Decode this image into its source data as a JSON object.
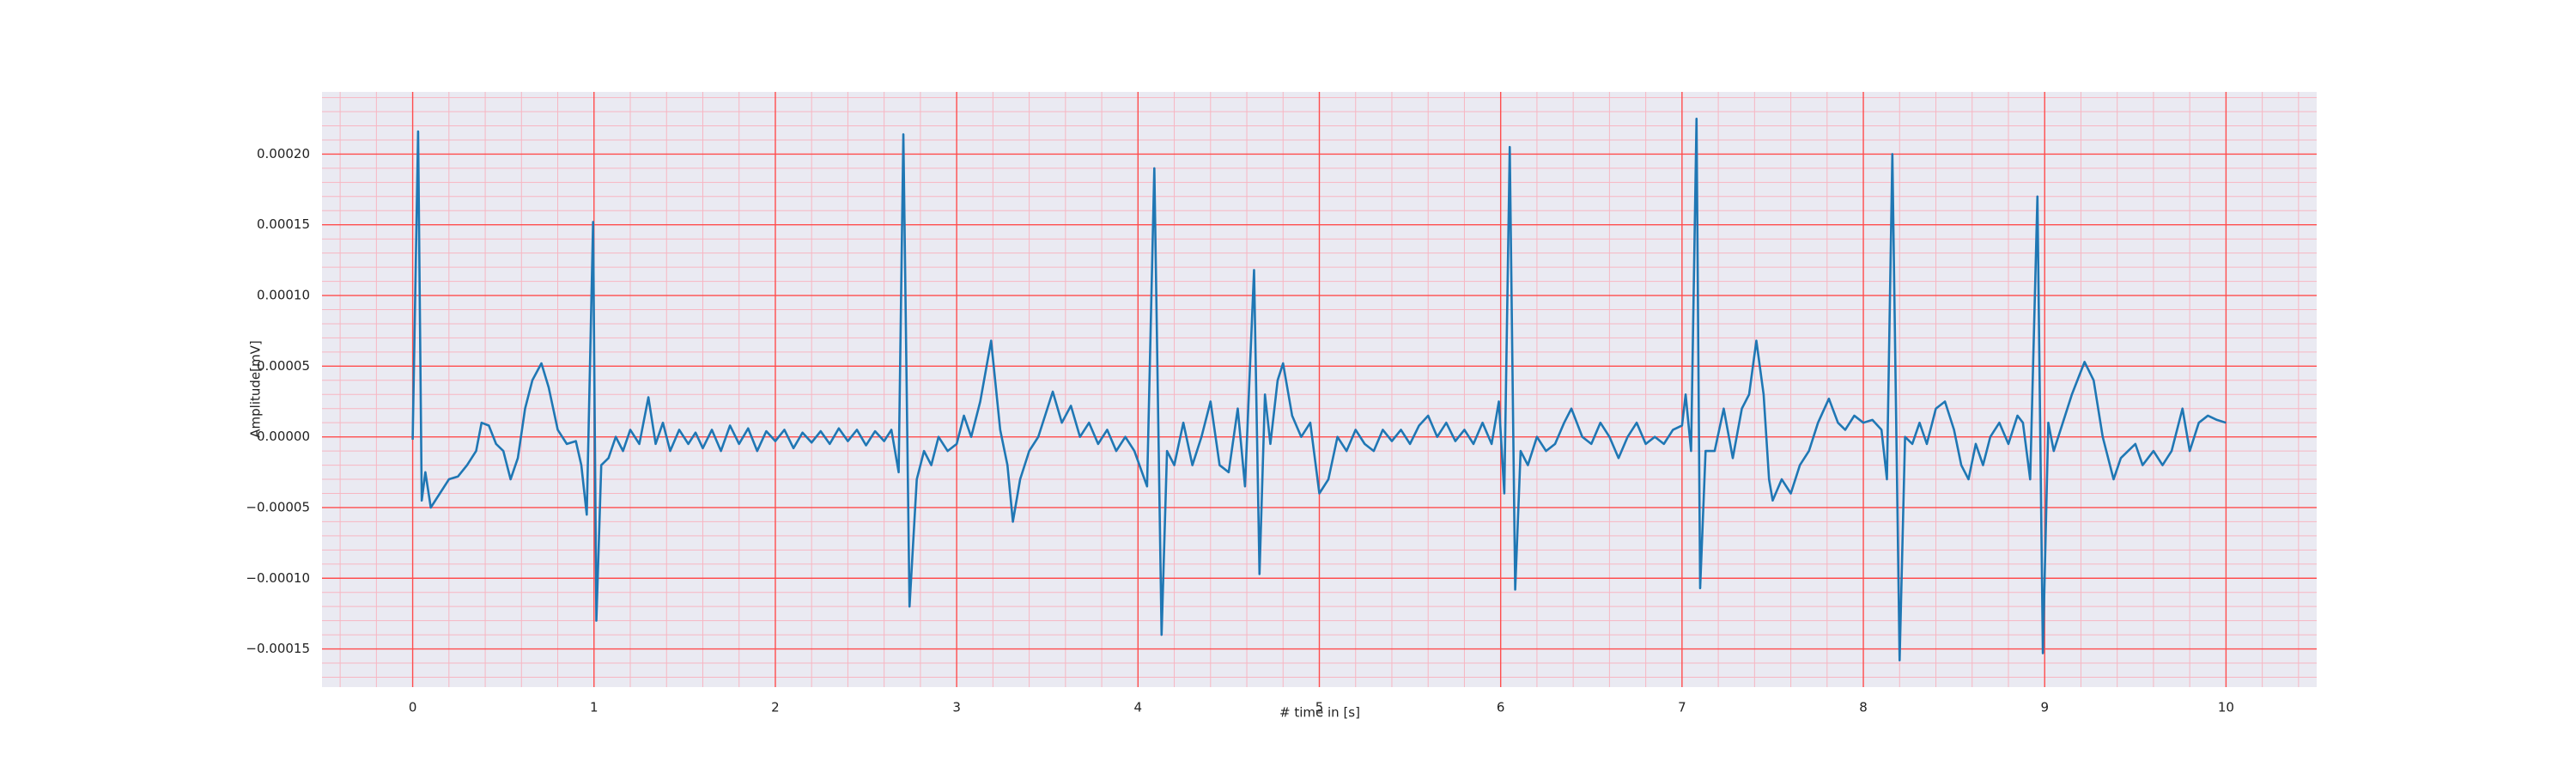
{
  "chart_data": {
    "type": "line",
    "xlabel": "# time in [s]",
    "ylabel": "Amplitude[mV]",
    "color": "#1f77b4",
    "background": "#eaeaf2",
    "grid": true,
    "grid_color": "#ff4d4d",
    "minor_grid": true,
    "minor_grid_color": "#f7b6c2",
    "xlim": [
      -0.5,
      10.5
    ],
    "ylim": [
      -0.000177,
      0.000244
    ],
    "xticks": [
      0,
      1,
      2,
      3,
      4,
      5,
      6,
      7,
      8,
      9,
      10
    ],
    "yticks": [
      {
        "value": -0.00015,
        "label": "−0.00015"
      },
      {
        "value": -0.0001,
        "label": "−0.00010"
      },
      {
        "value": -5e-05,
        "label": "−0.00005"
      },
      {
        "value": 0,
        "label": "0.00000"
      },
      {
        "value": 5e-05,
        "label": "0.00005"
      },
      {
        "value": 0.0001,
        "label": "0.00010"
      },
      {
        "value": 0.00015,
        "label": "0.00015"
      },
      {
        "value": 0.0002,
        "label": "0.00020"
      }
    ],
    "x": [
      0,
      0.03,
      0.05,
      0.07,
      0.1,
      0.15,
      0.2,
      0.25,
      0.3,
      0.35,
      0.38,
      0.42,
      0.46,
      0.5,
      0.54,
      0.58,
      0.62,
      0.66,
      0.71,
      0.75,
      0.8,
      0.85,
      0.9,
      0.93,
      0.96,
      0.995,
      1.013,
      1.04,
      1.08,
      1.12,
      1.16,
      1.2,
      1.25,
      1.3,
      1.34,
      1.38,
      1.42,
      1.47,
      1.52,
      1.56,
      1.6,
      1.65,
      1.7,
      1.75,
      1.8,
      1.85,
      1.9,
      1.95,
      2.0,
      2.05,
      2.1,
      2.15,
      2.2,
      2.25,
      2.3,
      2.35,
      2.4,
      2.45,
      2.5,
      2.55,
      2.6,
      2.64,
      2.68,
      2.706,
      2.74,
      2.78,
      2.82,
      2.86,
      2.9,
      2.95,
      3.0,
      3.04,
      3.08,
      3.13,
      3.19,
      3.24,
      3.28,
      3.31,
      3.35,
      3.4,
      3.45,
      3.5,
      3.53,
      3.58,
      3.63,
      3.68,
      3.73,
      3.78,
      3.83,
      3.88,
      3.93,
      3.98,
      4.05,
      4.09,
      4.13,
      4.16,
      4.2,
      4.25,
      4.3,
      4.35,
      4.4,
      4.45,
      4.5,
      4.55,
      4.59,
      4.64,
      4.67,
      4.7,
      4.73,
      4.77,
      4.8,
      4.85,
      4.9,
      4.95,
      5.0,
      5.05,
      5.1,
      5.15,
      5.2,
      5.25,
      5.3,
      5.35,
      5.4,
      5.45,
      5.5,
      5.55,
      5.6,
      5.65,
      5.7,
      5.75,
      5.8,
      5.85,
      5.9,
      5.95,
      5.99,
      6.02,
      6.05,
      6.08,
      6.11,
      6.15,
      6.2,
      6.25,
      6.3,
      6.35,
      6.39,
      6.45,
      6.5,
      6.55,
      6.6,
      6.65,
      6.7,
      6.75,
      6.8,
      6.85,
      6.9,
      6.95,
      7.0,
      7.02,
      7.05,
      7.08,
      7.1,
      7.13,
      7.18,
      7.23,
      7.28,
      7.33,
      7.37,
      7.41,
      7.45,
      7.48,
      7.5,
      7.55,
      7.6,
      7.65,
      7.7,
      7.75,
      7.81,
      7.86,
      7.9,
      7.95,
      8.0,
      8.05,
      8.1,
      8.13,
      8.16,
      8.2,
      8.23,
      8.27,
      8.31,
      8.35,
      8.4,
      8.45,
      8.5,
      8.54,
      8.58,
      8.62,
      8.66,
      8.7,
      8.75,
      8.8,
      8.85,
      8.88,
      8.92,
      8.96,
      8.99,
      9.02,
      9.05,
      9.1,
      9.15,
      9.22,
      9.27,
      9.32,
      9.38,
      9.42,
      9.46,
      9.5,
      9.54,
      9.6,
      9.65,
      9.7,
      9.76,
      9.8,
      9.85,
      9.9,
      9.95,
      10.0
    ],
    "values": [
      -2e-06,
      0.000216,
      -4.5e-05,
      -2.5e-05,
      -5e-05,
      -4e-05,
      -3e-05,
      -2.8e-05,
      -2e-05,
      -1e-05,
      1e-05,
      8e-06,
      -5e-06,
      -1e-05,
      -3e-05,
      -1.5e-05,
      2e-05,
      4e-05,
      5.2e-05,
      3.5e-05,
      5e-06,
      -5e-06,
      -3e-06,
      -2e-05,
      -5.5e-05,
      0.000152,
      -0.00013,
      -2e-05,
      -1.5e-05,
      0,
      -1e-05,
      5e-06,
      -5e-06,
      2.8e-05,
      -5e-06,
      1e-05,
      -1e-05,
      5e-06,
      -5e-06,
      3e-06,
      -8e-06,
      5e-06,
      -1e-05,
      8e-06,
      -5e-06,
      6e-06,
      -1e-05,
      4e-06,
      -3e-06,
      5e-06,
      -8e-06,
      3e-06,
      -4e-06,
      4e-06,
      -5e-06,
      6e-06,
      -3e-06,
      5e-06,
      -6e-06,
      4e-06,
      -3e-06,
      5e-06,
      -2.5e-05,
      0.000214,
      -0.00012,
      -3e-05,
      -1e-05,
      -2e-05,
      0,
      -1e-05,
      -5e-06,
      1.5e-05,
      0,
      2.5e-05,
      6.8e-05,
      5e-06,
      -2e-05,
      -6e-05,
      -3e-05,
      -1e-05,
      0,
      2e-05,
      3.2e-05,
      1e-05,
      2.2e-05,
      0,
      1e-05,
      -5e-06,
      5e-06,
      -1e-05,
      0,
      -1e-05,
      -3.5e-05,
      0.00019,
      -0.00014,
      -1e-05,
      -2e-05,
      1e-05,
      -2e-05,
      0,
      2.5e-05,
      -2e-05,
      -2.5e-05,
      2e-05,
      -3.5e-05,
      0.000118,
      -9.7e-05,
      3e-05,
      -5e-06,
      4e-05,
      5.2e-05,
      1.5e-05,
      0,
      1e-05,
      -4e-05,
      -3e-05,
      0,
      -1e-05,
      5e-06,
      -5e-06,
      -1e-05,
      5e-06,
      -3e-06,
      5e-06,
      -5e-06,
      8e-06,
      1.5e-05,
      0,
      1e-05,
      -3e-06,
      5e-06,
      -5e-06,
      1e-05,
      -5e-06,
      2.5e-05,
      -4e-05,
      0.000205,
      -0.000108,
      -1e-05,
      -2e-05,
      0,
      -1e-05,
      -5e-06,
      1e-05,
      2e-05,
      0,
      -5e-06,
      1e-05,
      0,
      -1.5e-05,
      0,
      1e-05,
      -5e-06,
      0,
      -5e-06,
      5e-06,
      8e-06,
      3e-05,
      -1e-05,
      0.000225,
      -0.000107,
      -1e-05,
      -1e-05,
      2e-05,
      -1.5e-05,
      2e-05,
      3e-05,
      6.8e-05,
      3e-05,
      -3e-05,
      -4.5e-05,
      -3e-05,
      -4e-05,
      -2e-05,
      -1e-05,
      1e-05,
      2.7e-05,
      1e-05,
      5e-06,
      1.5e-05,
      1e-05,
      1.2e-05,
      5e-06,
      -3e-05,
      0.0002,
      -0.000158,
      0,
      -5e-06,
      1e-05,
      -5e-06,
      2e-05,
      2.5e-05,
      5e-06,
      -2e-05,
      -3e-05,
      -5e-06,
      -2e-05,
      0,
      1e-05,
      -5e-06,
      1.5e-05,
      1e-05,
      -3e-05,
      0.00017,
      -0.000153,
      1e-05,
      -1e-05,
      1e-05,
      3e-05,
      5.3e-05,
      4e-05,
      0,
      -3e-05,
      -1.5e-05,
      -1e-05,
      -5e-06,
      -2e-05,
      -1e-05,
      -2e-05,
      -1e-05,
      2e-05,
      -1e-05,
      1e-05,
      1.5e-05,
      1.2e-05,
      1e-05
    ]
  }
}
